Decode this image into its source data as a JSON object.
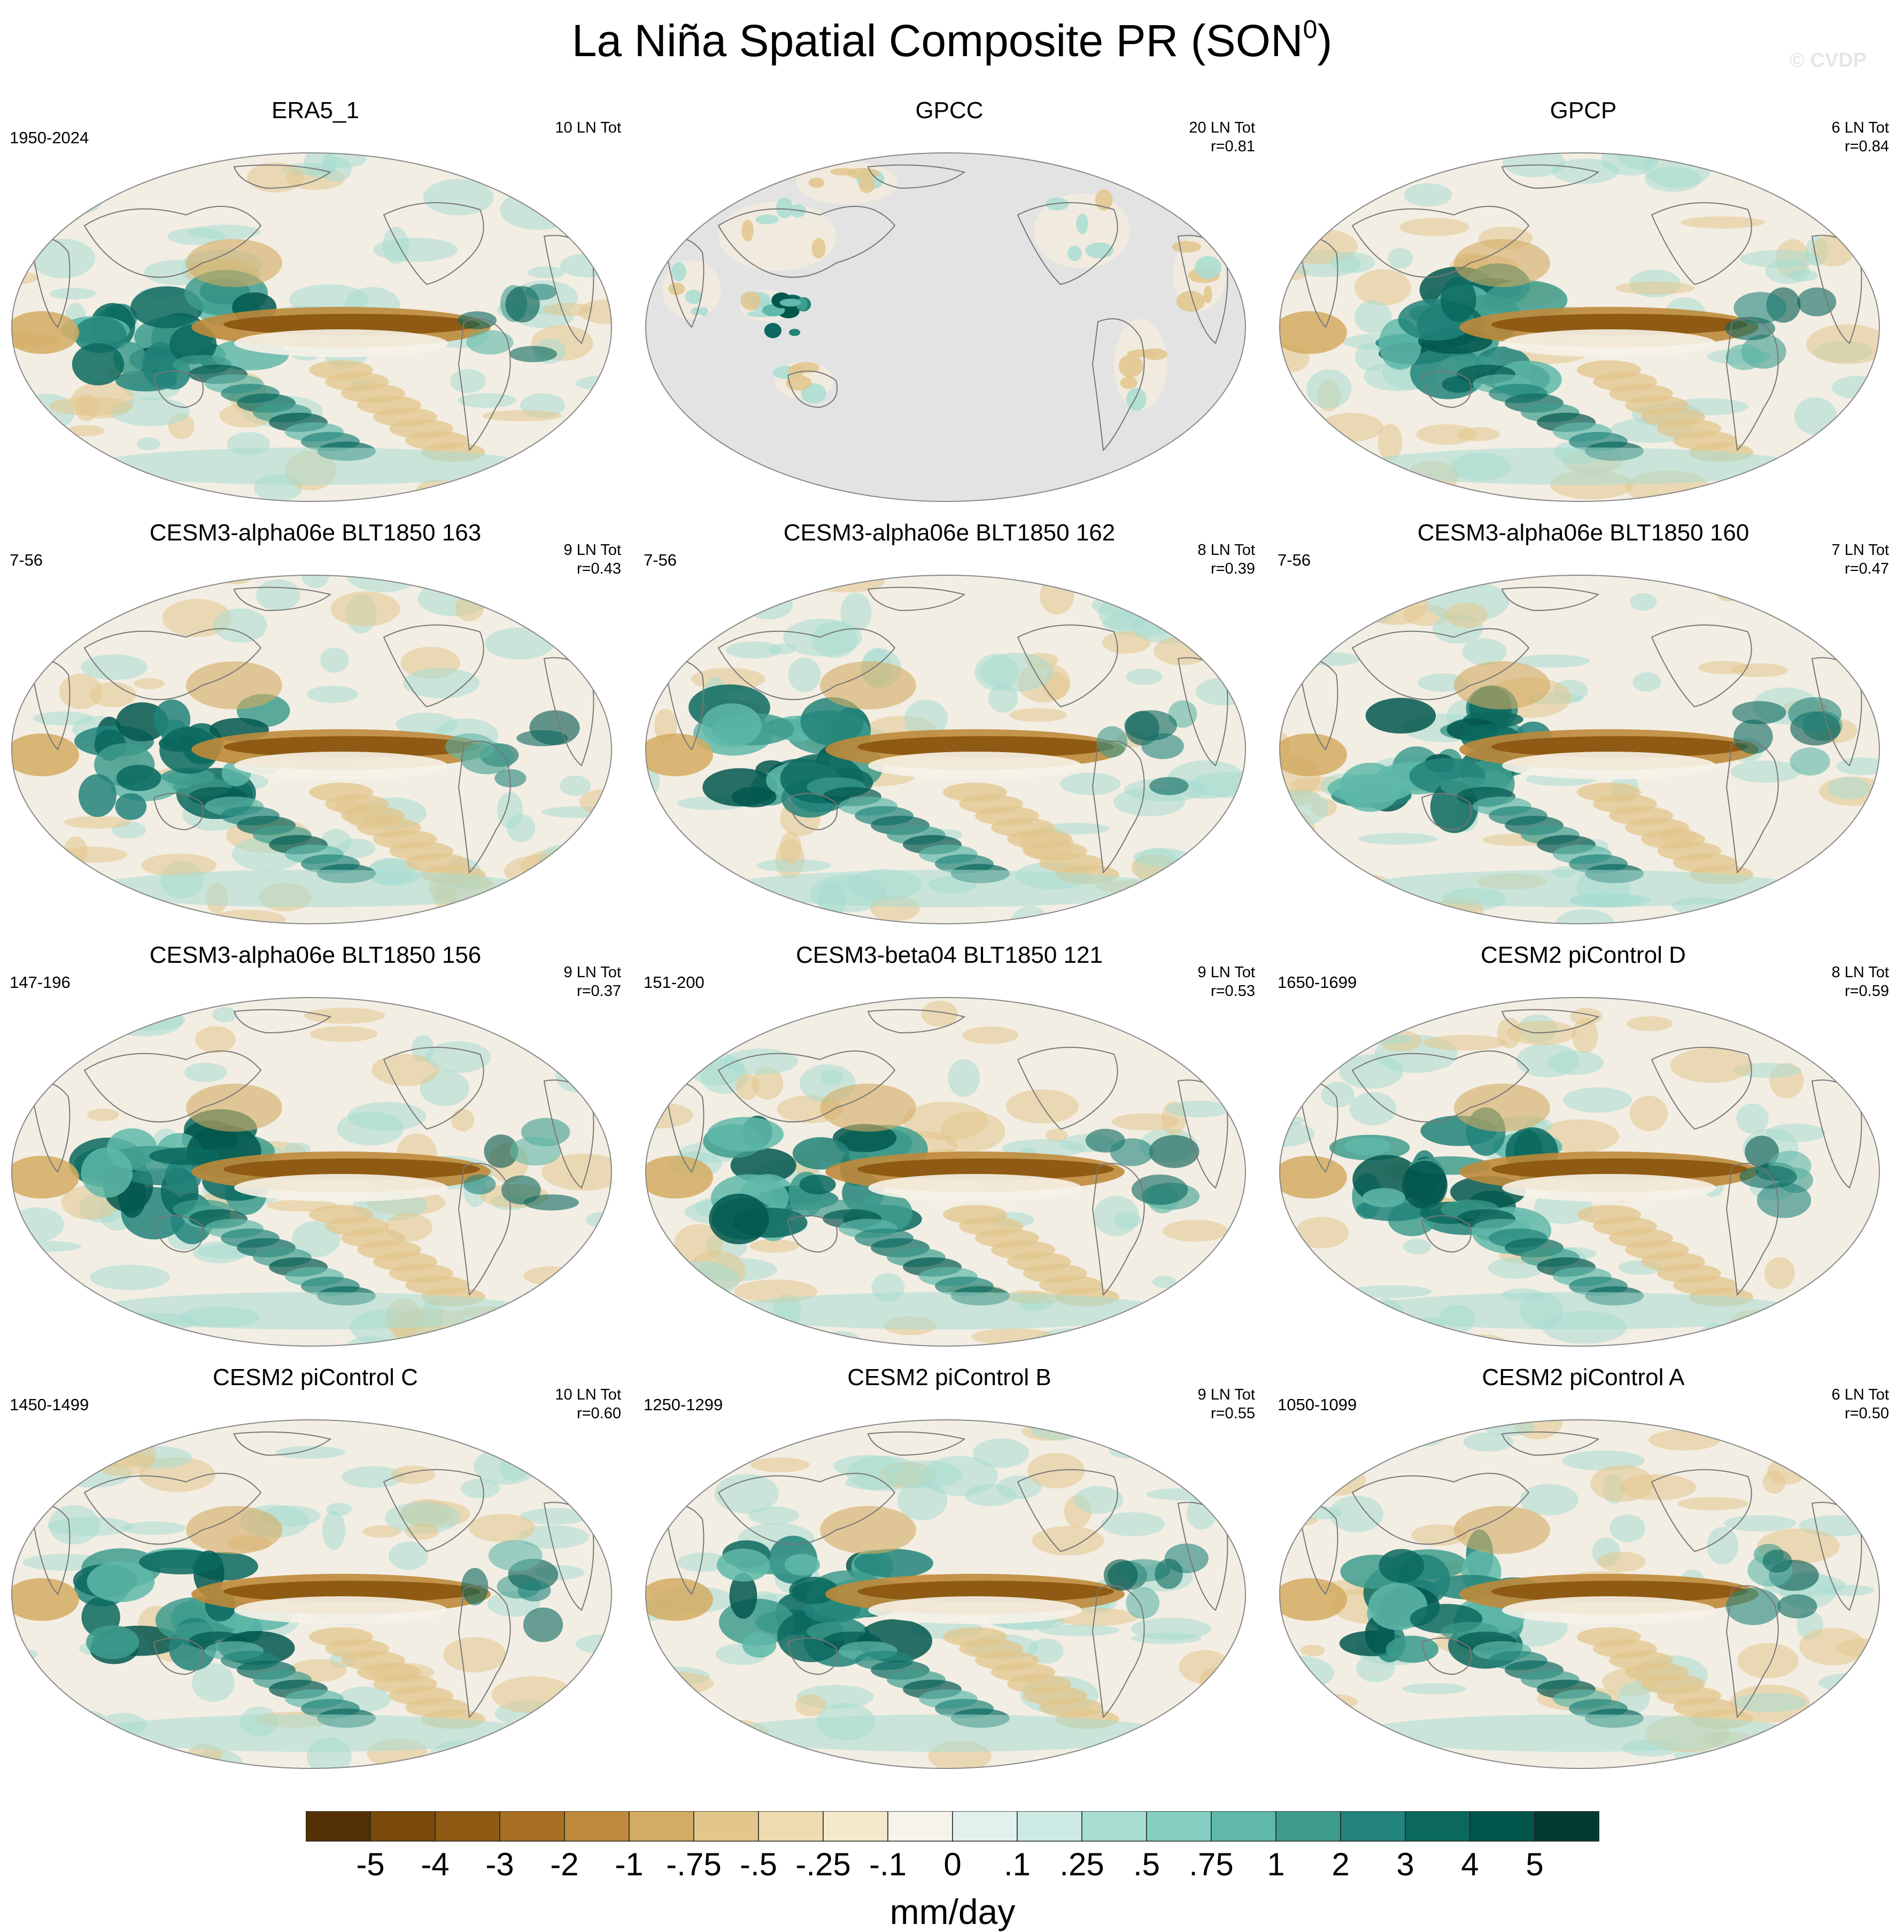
{
  "title": "La Niña Spatial Composite PR (SON",
  "title_sup": "0",
  "title_close": ")",
  "watermark": "© CVDP",
  "panels": [
    {
      "title": "ERA5_1",
      "years": "1950-2024",
      "events": "10 LN Tot",
      "r": "",
      "dataset": "era"
    },
    {
      "title": "GPCC",
      "years": "",
      "events": "20 LN Tot",
      "r": "r=0.81",
      "dataset": "gpcc"
    },
    {
      "title": "GPCP",
      "years": "",
      "events": "6 LN Tot",
      "r": "r=0.84",
      "dataset": "obs"
    },
    {
      "title": "CESM3-alpha06e BLT1850 163",
      "years": "7-56",
      "events": "9 LN Tot",
      "r": "r=0.43",
      "dataset": "model"
    },
    {
      "title": "CESM3-alpha06e BLT1850 162",
      "years": "7-56",
      "events": "8 LN Tot",
      "r": "r=0.39",
      "dataset": "model"
    },
    {
      "title": "CESM3-alpha06e BLT1850 160",
      "years": "7-56",
      "events": "7 LN Tot",
      "r": "r=0.47",
      "dataset": "model"
    },
    {
      "title": "CESM3-alpha06e BLT1850 156",
      "years": "147-196",
      "events": "9 LN Tot",
      "r": "r=0.37",
      "dataset": "model"
    },
    {
      "title": "CESM3-beta04 BLT1850 121",
      "years": "151-200",
      "events": "9 LN Tot",
      "r": "r=0.53",
      "dataset": "model"
    },
    {
      "title": "CESM2 piControl D",
      "years": "1650-1699",
      "events": "8 LN Tot",
      "r": "r=0.59",
      "dataset": "model"
    },
    {
      "title": "CESM2 piControl C",
      "years": "1450-1499",
      "events": "10 LN Tot",
      "r": "r=0.60",
      "dataset": "model"
    },
    {
      "title": "CESM2 piControl B",
      "years": "1250-1299",
      "events": "9 LN Tot",
      "r": "r=0.55",
      "dataset": "model"
    },
    {
      "title": "CESM2 piControl A",
      "years": "1050-1099",
      "events": "6 LN Tot",
      "r": "r=0.50",
      "dataset": "model"
    }
  ],
  "colorbar": {
    "label": "mm/day",
    "ticks": [
      "-5",
      "-4",
      "-3",
      "-2",
      "-1",
      "-.75",
      "-.5",
      "-.25",
      "-.1",
      "0",
      ".1",
      ".25",
      ".5",
      ".75",
      "1",
      "2",
      "3",
      "4",
      "5"
    ],
    "colors": [
      "#543005",
      "#7a4a0d",
      "#8f5a13",
      "#a66f22",
      "#bf8a3b",
      "#d3ac63",
      "#e2c68c",
      "#efdbb0",
      "#f5e9cc",
      "#f5f3ea",
      "#e3f1ee",
      "#cde9e3",
      "#a8ddd2",
      "#84cfc1",
      "#5fb8a9",
      "#3e9c8d",
      "#22847a",
      "#0a685e",
      "#02574d",
      "#013b32"
    ]
  }
}
